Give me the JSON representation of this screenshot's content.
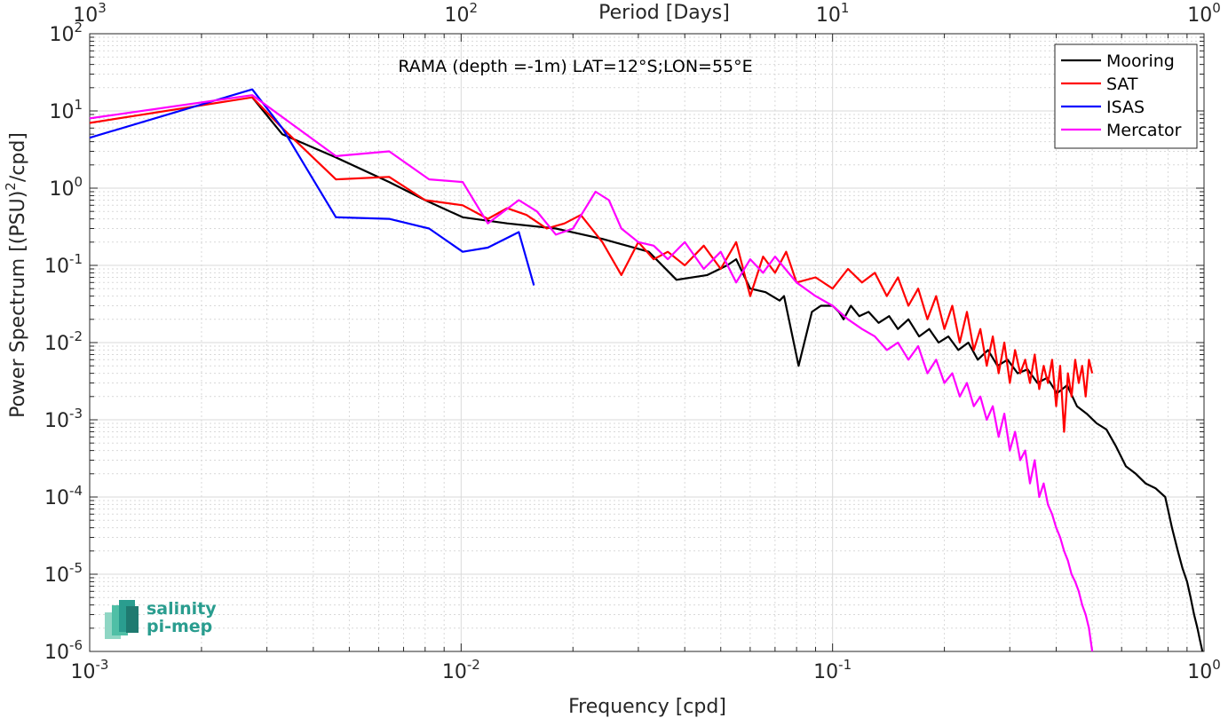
{
  "chart_data": {
    "type": "line",
    "title": "RAMA (depth =-1m) LAT=12°S;LON=55°E",
    "xlabel": "Frequency [cpd]",
    "ylabel": "Power Spectrum [(PSU)²/cpd]",
    "x2label": "Period [Days]",
    "xscale": "log",
    "yscale": "log",
    "xlim": [
      0.001,
      1
    ],
    "ylim": [
      1e-06,
      100
    ],
    "grid": true,
    "legend_position": "top-right",
    "x_ticks": [
      0.001,
      0.01,
      0.1,
      1
    ],
    "x_tick_labels": [
      {
        "base": "10",
        "exp": "-3"
      },
      {
        "base": "10",
        "exp": "-2"
      },
      {
        "base": "10",
        "exp": "-1"
      },
      {
        "base": "10",
        "exp": "0"
      }
    ],
    "x2_ticks": [
      1000,
      100,
      10,
      1
    ],
    "x2_tick_labels": [
      {
        "base": "10",
        "exp": "3"
      },
      {
        "base": "10",
        "exp": "2"
      },
      {
        "base": "10",
        "exp": "1"
      },
      {
        "base": "10",
        "exp": "0"
      }
    ],
    "y_ticks": [
      1e-06,
      1e-05,
      0.0001,
      0.001,
      0.01,
      0.1,
      1,
      10,
      100
    ],
    "y_tick_labels": [
      {
        "base": "10",
        "exp": "-6"
      },
      {
        "base": "10",
        "exp": "-5"
      },
      {
        "base": "10",
        "exp": "-4"
      },
      {
        "base": "10",
        "exp": "-3"
      },
      {
        "base": "10",
        "exp": "-2"
      },
      {
        "base": "10",
        "exp": "-1"
      },
      {
        "base": "10",
        "exp": "0"
      },
      {
        "base": "10",
        "exp": "1"
      },
      {
        "base": "10",
        "exp": "2"
      }
    ],
    "series": [
      {
        "name": "Mooring",
        "color": "#000000",
        "x": [
          0.00274,
          0.0033,
          0.0046,
          0.0064,
          0.008,
          0.0101,
          0.0133,
          0.018,
          0.024,
          0.032,
          0.038,
          0.046,
          0.052,
          0.055,
          0.06,
          0.066,
          0.072,
          0.074,
          0.081,
          0.088,
          0.093,
          0.1,
          0.104,
          0.107,
          0.112,
          0.118,
          0.125,
          0.133,
          0.142,
          0.15,
          0.16,
          0.171,
          0.182,
          0.193,
          0.205,
          0.218,
          0.232,
          0.246,
          0.262,
          0.278,
          0.296,
          0.315,
          0.335,
          0.356,
          0.378,
          0.402,
          0.428,
          0.455,
          0.483,
          0.514,
          0.546,
          0.58,
          0.616,
          0.655,
          0.696,
          0.74,
          0.786,
          0.82,
          0.85,
          0.875,
          0.9,
          0.92,
          0.94,
          0.96,
          0.975,
          0.99
        ],
        "y": [
          15,
          5,
          2.5,
          1.2,
          0.7,
          0.42,
          0.35,
          0.3,
          0.22,
          0.15,
          0.065,
          0.075,
          0.1,
          0.12,
          0.05,
          0.045,
          0.035,
          0.04,
          0.005,
          0.025,
          0.03,
          0.03,
          0.025,
          0.02,
          0.03,
          0.022,
          0.025,
          0.018,
          0.022,
          0.015,
          0.02,
          0.012,
          0.015,
          0.01,
          0.012,
          0.008,
          0.01,
          0.006,
          0.008,
          0.005,
          0.006,
          0.004,
          0.0045,
          0.003,
          0.0035,
          0.0022,
          0.0028,
          0.0015,
          0.0012,
          0.0009,
          0.00075,
          0.00045,
          0.00025,
          0.0002,
          0.00015,
          0.00013,
          0.0001,
          4e-05,
          2e-05,
          1.2e-05,
          8e-06,
          5e-06,
          3e-06,
          2e-06,
          1.4e-06,
          1e-06
        ]
      },
      {
        "name": "SAT",
        "color": "#ff0000",
        "x": [
          0.001,
          0.00274,
          0.0033,
          0.0046,
          0.0064,
          0.008,
          0.0101,
          0.0118,
          0.0133,
          0.015,
          0.017,
          0.019,
          0.021,
          0.024,
          0.027,
          0.03,
          0.033,
          0.036,
          0.04,
          0.045,
          0.05,
          0.055,
          0.06,
          0.065,
          0.07,
          0.075,
          0.08,
          0.09,
          0.1,
          0.11,
          0.12,
          0.13,
          0.14,
          0.15,
          0.16,
          0.17,
          0.18,
          0.19,
          0.2,
          0.21,
          0.22,
          0.23,
          0.24,
          0.25,
          0.26,
          0.27,
          0.28,
          0.29,
          0.3,
          0.31,
          0.32,
          0.33,
          0.34,
          0.35,
          0.36,
          0.37,
          0.38,
          0.39,
          0.4,
          0.41,
          0.42,
          0.43,
          0.44,
          0.45,
          0.46,
          0.47,
          0.48,
          0.49,
          0.5
        ],
        "y": [
          7,
          15,
          6,
          1.3,
          1.4,
          0.7,
          0.6,
          0.4,
          0.55,
          0.45,
          0.3,
          0.35,
          0.45,
          0.2,
          0.075,
          0.2,
          0.12,
          0.15,
          0.1,
          0.18,
          0.09,
          0.2,
          0.04,
          0.13,
          0.08,
          0.15,
          0.06,
          0.07,
          0.05,
          0.09,
          0.06,
          0.08,
          0.04,
          0.07,
          0.03,
          0.05,
          0.02,
          0.04,
          0.015,
          0.03,
          0.01,
          0.025,
          0.008,
          0.015,
          0.005,
          0.012,
          0.004,
          0.01,
          0.003,
          0.008,
          0.004,
          0.006,
          0.003,
          0.007,
          0.0025,
          0.005,
          0.003,
          0.006,
          0.0015,
          0.005,
          0.0007,
          0.004,
          0.002,
          0.006,
          0.003,
          0.005,
          0.002,
          0.006,
          0.004
        ]
      },
      {
        "name": "ISAS",
        "color": "#0000ff",
        "x": [
          0.001,
          0.00274,
          0.0033,
          0.0046,
          0.0064,
          0.0082,
          0.0101,
          0.0118,
          0.0143,
          0.0157
        ],
        "y": [
          4.5,
          19,
          6,
          0.42,
          0.4,
          0.3,
          0.15,
          0.17,
          0.27,
          0.055
        ]
      },
      {
        "name": "Mercator",
        "color": "#ff00ff",
        "x": [
          0.001,
          0.00274,
          0.0046,
          0.0064,
          0.0082,
          0.0101,
          0.0118,
          0.0143,
          0.016,
          0.018,
          0.02,
          0.023,
          0.025,
          0.027,
          0.03,
          0.033,
          0.036,
          0.04,
          0.045,
          0.05,
          0.055,
          0.06,
          0.065,
          0.07,
          0.08,
          0.09,
          0.1,
          0.11,
          0.12,
          0.13,
          0.14,
          0.15,
          0.16,
          0.17,
          0.18,
          0.19,
          0.2,
          0.21,
          0.22,
          0.23,
          0.24,
          0.25,
          0.26,
          0.27,
          0.28,
          0.29,
          0.3,
          0.31,
          0.32,
          0.33,
          0.34,
          0.35,
          0.36,
          0.37,
          0.38,
          0.39,
          0.4,
          0.41,
          0.42,
          0.43,
          0.44,
          0.45,
          0.46,
          0.47,
          0.48,
          0.49,
          0.5
        ],
        "y": [
          8,
          16,
          2.6,
          3,
          1.3,
          1.2,
          0.35,
          0.7,
          0.5,
          0.25,
          0.3,
          0.9,
          0.7,
          0.3,
          0.2,
          0.18,
          0.12,
          0.2,
          0.09,
          0.15,
          0.06,
          0.12,
          0.08,
          0.13,
          0.06,
          0.04,
          0.03,
          0.02,
          0.015,
          0.012,
          0.008,
          0.01,
          0.006,
          0.009,
          0.004,
          0.006,
          0.003,
          0.004,
          0.002,
          0.003,
          0.0015,
          0.002,
          0.001,
          0.0015,
          0.0006,
          0.0012,
          0.0004,
          0.0007,
          0.0003,
          0.0004,
          0.00015,
          0.0003,
          0.0001,
          0.00015,
          8e-05,
          6e-05,
          4e-05,
          3e-05,
          2e-05,
          1.5e-05,
          1e-05,
          8e-06,
          6e-06,
          4e-06,
          3e-06,
          2e-06,
          1e-06
        ]
      }
    ]
  },
  "logo": {
    "line1": "salinity",
    "line2": "pi-mep"
  }
}
